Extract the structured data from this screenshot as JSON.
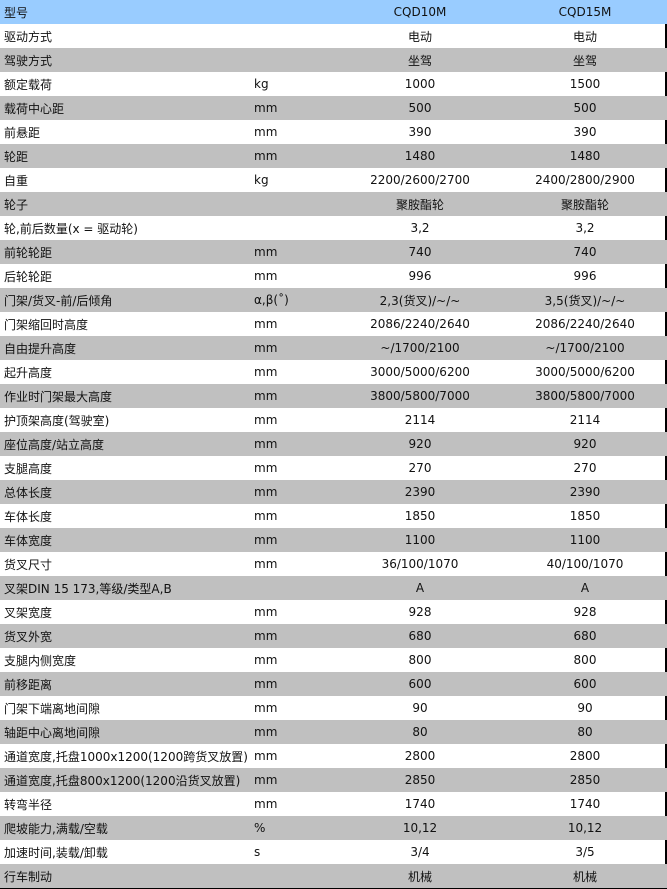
{
  "header": {
    "label": "型号",
    "unit": "",
    "m1": "CQD10M",
    "m2": "CQD15M"
  },
  "colors": {
    "header_bg": "#99ccff",
    "alt_row_bg": "#c0c0c0",
    "row_bg": "#ffffff"
  },
  "rows": [
    {
      "label": "驱动方式",
      "unit": "",
      "m1": "电动",
      "m2": "电动"
    },
    {
      "label": "驾驶方式",
      "unit": "",
      "m1": "坐驾",
      "m2": "坐驾"
    },
    {
      "label": "额定载荷",
      "unit": "kg",
      "m1": "1000",
      "m2": "1500"
    },
    {
      "label": "载荷中心距",
      "unit": "mm",
      "m1": "500",
      "m2": "500"
    },
    {
      "label": "前悬距",
      "unit": "mm",
      "m1": "390",
      "m2": "390"
    },
    {
      "label": "轮距",
      "unit": "mm",
      "m1": "1480",
      "m2": "1480"
    },
    {
      "label": "自重",
      "unit": "kg",
      "m1": "2200/2600/2700",
      "m2": "2400/2800/2900"
    },
    {
      "label": "轮子",
      "unit": "",
      "m1": "聚胺酯轮",
      "m2": "聚胺酯轮"
    },
    {
      "label": "轮,前后数量(x = 驱动轮)",
      "unit": "",
      "m1": "3,2",
      "m2": "3,2"
    },
    {
      "label": "前轮轮距",
      "unit": "mm",
      "m1": "740",
      "m2": "740"
    },
    {
      "label": "后轮轮距",
      "unit": "mm",
      "m1": "996",
      "m2": "996"
    },
    {
      "label": "门架/货叉-前/后倾角",
      "unit": "α,β(˚)",
      "m1": "2,3(货叉)/~/~",
      "m2": "3,5(货叉)/~/~"
    },
    {
      "label": "门架缩回时高度",
      "unit": "mm",
      "m1": "2086/2240/2640",
      "m2": "2086/2240/2640"
    },
    {
      "label": "自由提升高度",
      "unit": "mm",
      "m1": "~/1700/2100",
      "m2": "~/1700/2100"
    },
    {
      "label": "起升高度",
      "unit": "mm",
      "m1": "3000/5000/6200",
      "m2": "3000/5000/6200"
    },
    {
      "label": "作业时门架最大高度",
      "unit": "mm",
      "m1": "3800/5800/7000",
      "m2": "3800/5800/7000"
    },
    {
      "label": "护顶架高度(驾驶室)",
      "unit": "mm",
      "m1": "2114",
      "m2": "2114"
    },
    {
      "label": "座位高度/站立高度",
      "unit": "mm",
      "m1": "920",
      "m2": "920"
    },
    {
      "label": "支腿高度",
      "unit": "mm",
      "m1": "270",
      "m2": "270"
    },
    {
      "label": "总体长度",
      "unit": "mm",
      "m1": "2390",
      "m2": "2390"
    },
    {
      "label": "车体长度",
      "unit": "mm",
      "m1": "1850",
      "m2": "1850"
    },
    {
      "label": "车体宽度",
      "unit": "mm",
      "m1": "1100",
      "m2": "1100"
    },
    {
      "label": "货叉尺寸",
      "unit": "mm",
      "m1": "36/100/1070",
      "m2": "40/100/1070"
    },
    {
      "label": "叉架DIN 15 173,等级/类型A,B",
      "unit": "",
      "m1": "A",
      "m2": "A"
    },
    {
      "label": "叉架宽度",
      "unit": "mm",
      "m1": "928",
      "m2": "928"
    },
    {
      "label": "货叉外宽",
      "unit": "mm",
      "m1": "680",
      "m2": "680"
    },
    {
      "label": "支腿内侧宽度",
      "unit": "mm",
      "m1": "800",
      "m2": "800"
    },
    {
      "label": "前移距离",
      "unit": "mm",
      "m1": "600",
      "m2": "600"
    },
    {
      "label": "门架下端离地间隙",
      "unit": "mm",
      "m1": "90",
      "m2": "90"
    },
    {
      "label": "轴距中心离地间隙",
      "unit": "mm",
      "m1": "80",
      "m2": "80"
    },
    {
      "label": "通道宽度,托盘1000x1200(1200跨货叉放置)",
      "unit": "mm",
      "m1": "2800",
      "m2": "2800"
    },
    {
      "label": "通道宽度,托盘800x1200(1200沿货叉放置)",
      "unit": "mm",
      "m1": "2850",
      "m2": "2850"
    },
    {
      "label": "转弯半径",
      "unit": "mm",
      "m1": "1740",
      "m2": "1740"
    },
    {
      "label": "爬坡能力,满载/空载",
      "unit": "%",
      "m1": "10,12",
      "m2": "10,12"
    },
    {
      "label": "加速时间,装载/卸载",
      "unit": "s",
      "m1": "3/4",
      "m2": "3/5"
    },
    {
      "label": "行车制动",
      "unit": "",
      "m1": "机械",
      "m2": "机械"
    }
  ]
}
